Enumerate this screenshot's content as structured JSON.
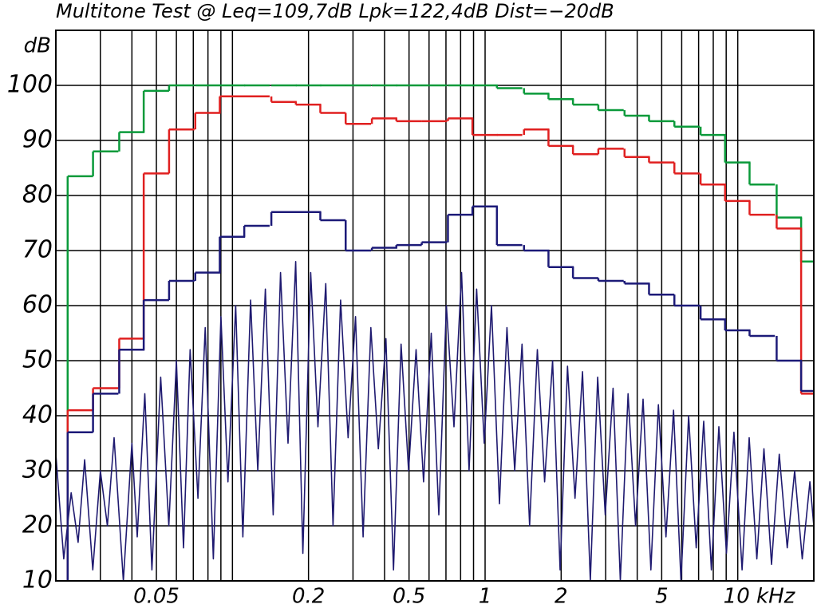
{
  "chart_data": {
    "type": "line",
    "title": "Multitone Test @ Leq=109,7dB  Lpk=122,4dB  Dist=−20dB",
    "y_label": "dB",
    "x_scale": "log",
    "xlim": [
      0.02,
      20
    ],
    "ylim": [
      10,
      110
    ],
    "xticks": [
      0.05,
      0.2,
      0.5,
      1,
      2,
      5,
      {
        "value": 10,
        "label": "10 kHz"
      }
    ],
    "yticks": [
      10,
      20,
      30,
      40,
      50,
      60,
      70,
      80,
      90,
      100
    ],
    "xgrid": [
      0.03,
      0.04,
      0.05,
      0.06,
      0.07,
      0.08,
      0.09,
      0.1,
      0.2,
      0.3,
      0.4,
      0.5,
      0.6,
      0.7,
      0.8,
      0.9,
      1,
      2,
      3,
      4,
      5,
      6,
      7,
      8,
      9,
      10
    ],
    "grid": true,
    "step_width_octaves": 0.3333,
    "x": [
      0.025,
      0.0315,
      0.04,
      0.05,
      0.063,
      0.08,
      0.1,
      0.125,
      0.16,
      0.2,
      0.25,
      0.315,
      0.4,
      0.5,
      0.63,
      0.8,
      1,
      1.25,
      1.6,
      2,
      2.5,
      3.15,
      4,
      5,
      6.3,
      8,
      10,
      12.5,
      16,
      20
    ],
    "series": [
      {
        "color": "#0a9a3a",
        "style": "step",
        "values": [
          83.5,
          88,
          91.5,
          99,
          100,
          100,
          100,
          100,
          100,
          100,
          100,
          100,
          100,
          100,
          100,
          100,
          100,
          99.5,
          98.5,
          97.5,
          96.5,
          95.5,
          94.5,
          93.5,
          92.5,
          91,
          86,
          82,
          76,
          68
        ]
      },
      {
        "color": "#e02020",
        "style": "step",
        "values": [
          41,
          45,
          54,
          84,
          92,
          95,
          98,
          98,
          97,
          96.5,
          95,
          93,
          94,
          93.5,
          93.5,
          94,
          91,
          91,
          92,
          89,
          87.5,
          88.5,
          87,
          86,
          84,
          82,
          79,
          76.5,
          74,
          44
        ]
      },
      {
        "color": "#1c1a78",
        "style": "step",
        "values": [
          37,
          44,
          52,
          61,
          64.5,
          66,
          72.5,
          74.5,
          77,
          77,
          75.5,
          70,
          70.5,
          71,
          71.5,
          76.5,
          78,
          71,
          70,
          67,
          65,
          64.5,
          64,
          62,
          60,
          57.5,
          55.5,
          54.5,
          50,
          44.5
        ]
      },
      {
        "color": "#1f1a70",
        "style": "line",
        "x": [
          0.02,
          0.0215,
          0.023,
          0.0245,
          0.026,
          0.028,
          0.03,
          0.032,
          0.034,
          0.037,
          0.04,
          0.042,
          0.045,
          0.048,
          0.052,
          0.056,
          0.06,
          0.064,
          0.068,
          0.073,
          0.078,
          0.084,
          0.09,
          0.096,
          0.103,
          0.11,
          0.118,
          0.126,
          0.135,
          0.145,
          0.155,
          0.166,
          0.178,
          0.19,
          0.204,
          0.218,
          0.234,
          0.25,
          0.268,
          0.287,
          0.307,
          0.329,
          0.353,
          0.378,
          0.405,
          0.434,
          0.465,
          0.498,
          0.533,
          0.571,
          0.612,
          0.656,
          0.703,
          0.753,
          0.807,
          0.864,
          0.926,
          0.992,
          1.06,
          1.14,
          1.22,
          1.31,
          1.4,
          1.5,
          1.61,
          1.72,
          1.85,
          1.98,
          2.12,
          2.27,
          2.43,
          2.61,
          2.79,
          2.99,
          3.21,
          3.43,
          3.68,
          3.94,
          4.22,
          4.53,
          4.85,
          5.2,
          5.57,
          5.96,
          6.39,
          6.85,
          7.33,
          7.86,
          8.42,
          9.02,
          9.66,
          10.4,
          11.1,
          11.9,
          12.7,
          13.6,
          14.6,
          15.7,
          16.8,
          18.0,
          19.3,
          20.0
        ],
        "values": [
          33,
          14,
          26,
          17,
          32,
          12,
          30,
          20,
          36,
          10,
          35,
          18,
          44,
          12,
          47,
          20,
          50,
          16,
          52,
          25,
          56,
          14,
          58,
          28,
          60,
          18,
          61,
          30,
          63,
          22,
          66,
          35,
          68,
          15,
          66,
          38,
          64,
          20,
          61,
          36,
          58,
          18,
          56,
          34,
          54,
          12,
          53,
          30,
          52,
          28,
          55,
          22,
          60,
          38,
          66,
          30,
          63,
          35,
          60,
          24,
          56,
          30,
          53,
          20,
          52,
          28,
          50,
          12,
          49,
          25,
          48,
          10,
          47,
          22,
          45,
          10,
          44,
          20,
          43,
          12,
          42,
          18,
          41,
          10,
          40,
          16,
          39,
          12,
          38,
          15,
          37,
          12,
          36,
          14,
          34,
          13,
          33,
          16,
          30,
          14,
          28,
          20
        ]
      }
    ]
  }
}
